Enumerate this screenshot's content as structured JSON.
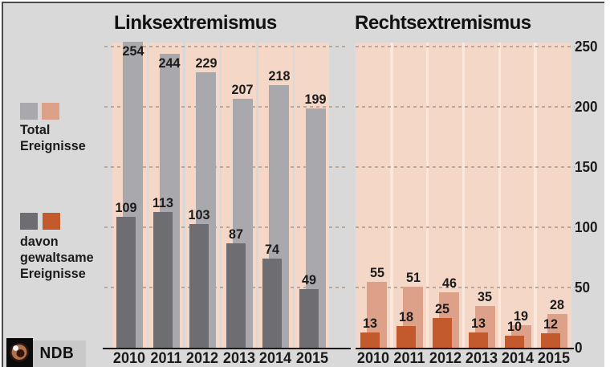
{
  "colors": {
    "page_bg": "#d9d9d9",
    "frame_border": "#4a4a4c",
    "stripe_pink": "#f4d7c6",
    "stripe_separator": "#fae8dc",
    "bar_total_left": "#a9a9ad",
    "bar_violent_left": "#6e6e72",
    "bar_total_right": "#dda189",
    "bar_violent_right": "#c35a2d",
    "gridline": "#b9a99c",
    "axis": "#1a1a1a",
    "text": "#1b1b1b",
    "ndb_box_bg": "#0b0b0b",
    "ndb_label_bg": "#c9c9c9",
    "eye_iris": "#b2714d",
    "eye_pupil": "#33140c",
    "eye_ring": "#2d1610"
  },
  "legend": {
    "total": {
      "lines": [
        "Total",
        "Ereignisse"
      ],
      "swatches": [
        "#a9a9ad",
        "#dda189"
      ]
    },
    "violent": {
      "lines": [
        "davon",
        "gewaltsame",
        "Ereignisse"
      ],
      "swatches": [
        "#6e6e72",
        "#c35a2d"
      ]
    }
  },
  "logo": {
    "text": "NDB"
  },
  "y_axis": {
    "ticks": [
      0,
      50,
      100,
      150,
      200,
      250
    ]
  },
  "chart_data": [
    {
      "type": "bar",
      "title": "Linksextremismus",
      "categories": [
        "2010",
        "2011",
        "2012",
        "2013",
        "2014",
        "2015"
      ],
      "series": [
        {
          "name": "Total Ereignisse",
          "values": [
            254,
            244,
            229,
            207,
            218,
            199
          ],
          "color": "#a9a9ad"
        },
        {
          "name": "davon gewaltsame Ereignisse",
          "values": [
            109,
            113,
            103,
            87,
            74,
            49
          ],
          "color": "#6e6e72"
        }
      ],
      "ylim": [
        0,
        250
      ],
      "gridlines": [
        50,
        100,
        150,
        200,
        250
      ],
      "legend_position": "left",
      "grid": "dashed"
    },
    {
      "type": "bar",
      "title": "Rechtsextremismus",
      "categories": [
        "2010",
        "2011",
        "2012",
        "2013",
        "2014",
        "2015"
      ],
      "series": [
        {
          "name": "Total Ereignisse",
          "values": [
            55,
            51,
            46,
            35,
            19,
            28
          ],
          "color": "#dda189"
        },
        {
          "name": "davon gewaltsame Ereignisse",
          "values": [
            13,
            18,
            25,
            13,
            10,
            12
          ],
          "color": "#c35a2d"
        }
      ],
      "ylim": [
        0,
        250
      ],
      "gridlines": [
        50,
        100,
        150,
        200,
        250
      ],
      "legend_position": "left",
      "grid": "dashed"
    }
  ]
}
